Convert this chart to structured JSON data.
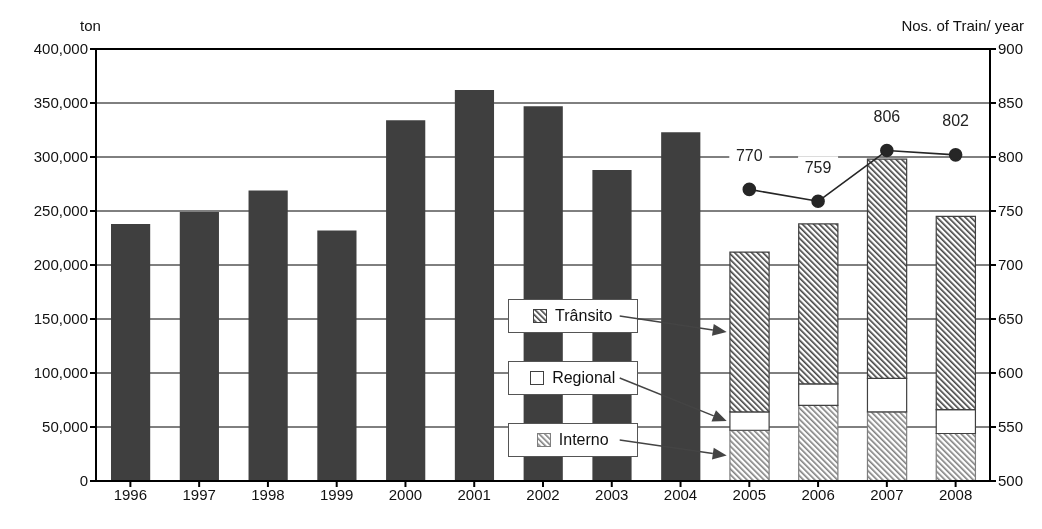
{
  "chart_data": {
    "type": "bar",
    "stacked": true,
    "ylabel": "ton",
    "y2label": "Nos. of Train/ year",
    "categories": [
      "1996",
      "1997",
      "1998",
      "1999",
      "2000",
      "2001",
      "2002",
      "2003",
      "2004",
      "2005",
      "2006",
      "2007",
      "2008"
    ],
    "series": [
      {
        "color": "#3f3f3f",
        "values": [
          238000,
          249000,
          269000,
          232000,
          334000,
          362000,
          347000,
          288000,
          323000,
          null,
          null,
          null,
          null
        ]
      },
      {
        "name": "Interno",
        "color": "#7f7f7f",
        "values": [
          null,
          null,
          null,
          null,
          null,
          null,
          null,
          null,
          null,
          47000,
          70000,
          64000,
          44000
        ]
      },
      {
        "name": "Regional",
        "color": "#ffffff",
        "values": [
          null,
          null,
          null,
          null,
          null,
          null,
          null,
          null,
          null,
          17000,
          20000,
          31000,
          22000
        ]
      },
      {
        "name": "Trânsito",
        "color": "#404040",
        "values": [
          null,
          null,
          null,
          null,
          null,
          null,
          null,
          null,
          null,
          148000,
          148000,
          203000,
          179000
        ]
      },
      {
        "type": "line",
        "axis": "y2",
        "color": "#262626",
        "marker": "circle",
        "data_labels": true,
        "values": [
          null,
          null,
          null,
          null,
          null,
          null,
          null,
          null,
          null,
          770,
          759,
          806,
          802
        ]
      }
    ],
    "ylim": [
      0,
      400000
    ],
    "yticks": [
      0,
      {
        "value": 50000,
        "label": "50,000"
      },
      {
        "value": 100000,
        "label": "100,000"
      },
      {
        "value": 150000,
        "label": "150,000"
      },
      {
        "value": 200000,
        "label": "200,000"
      },
      {
        "value": 250000,
        "label": "250,000"
      },
      {
        "value": 300000,
        "label": "300,000"
      },
      {
        "value": 350000,
        "label": "350,000"
      },
      {
        "value": 400000,
        "label": "400,000"
      }
    ],
    "y2lim": [
      500,
      900
    ],
    "y2ticks": [
      500,
      550,
      600,
      650,
      700,
      750,
      800,
      850,
      900
    ],
    "grid": "y",
    "legend": "bottom"
  }
}
